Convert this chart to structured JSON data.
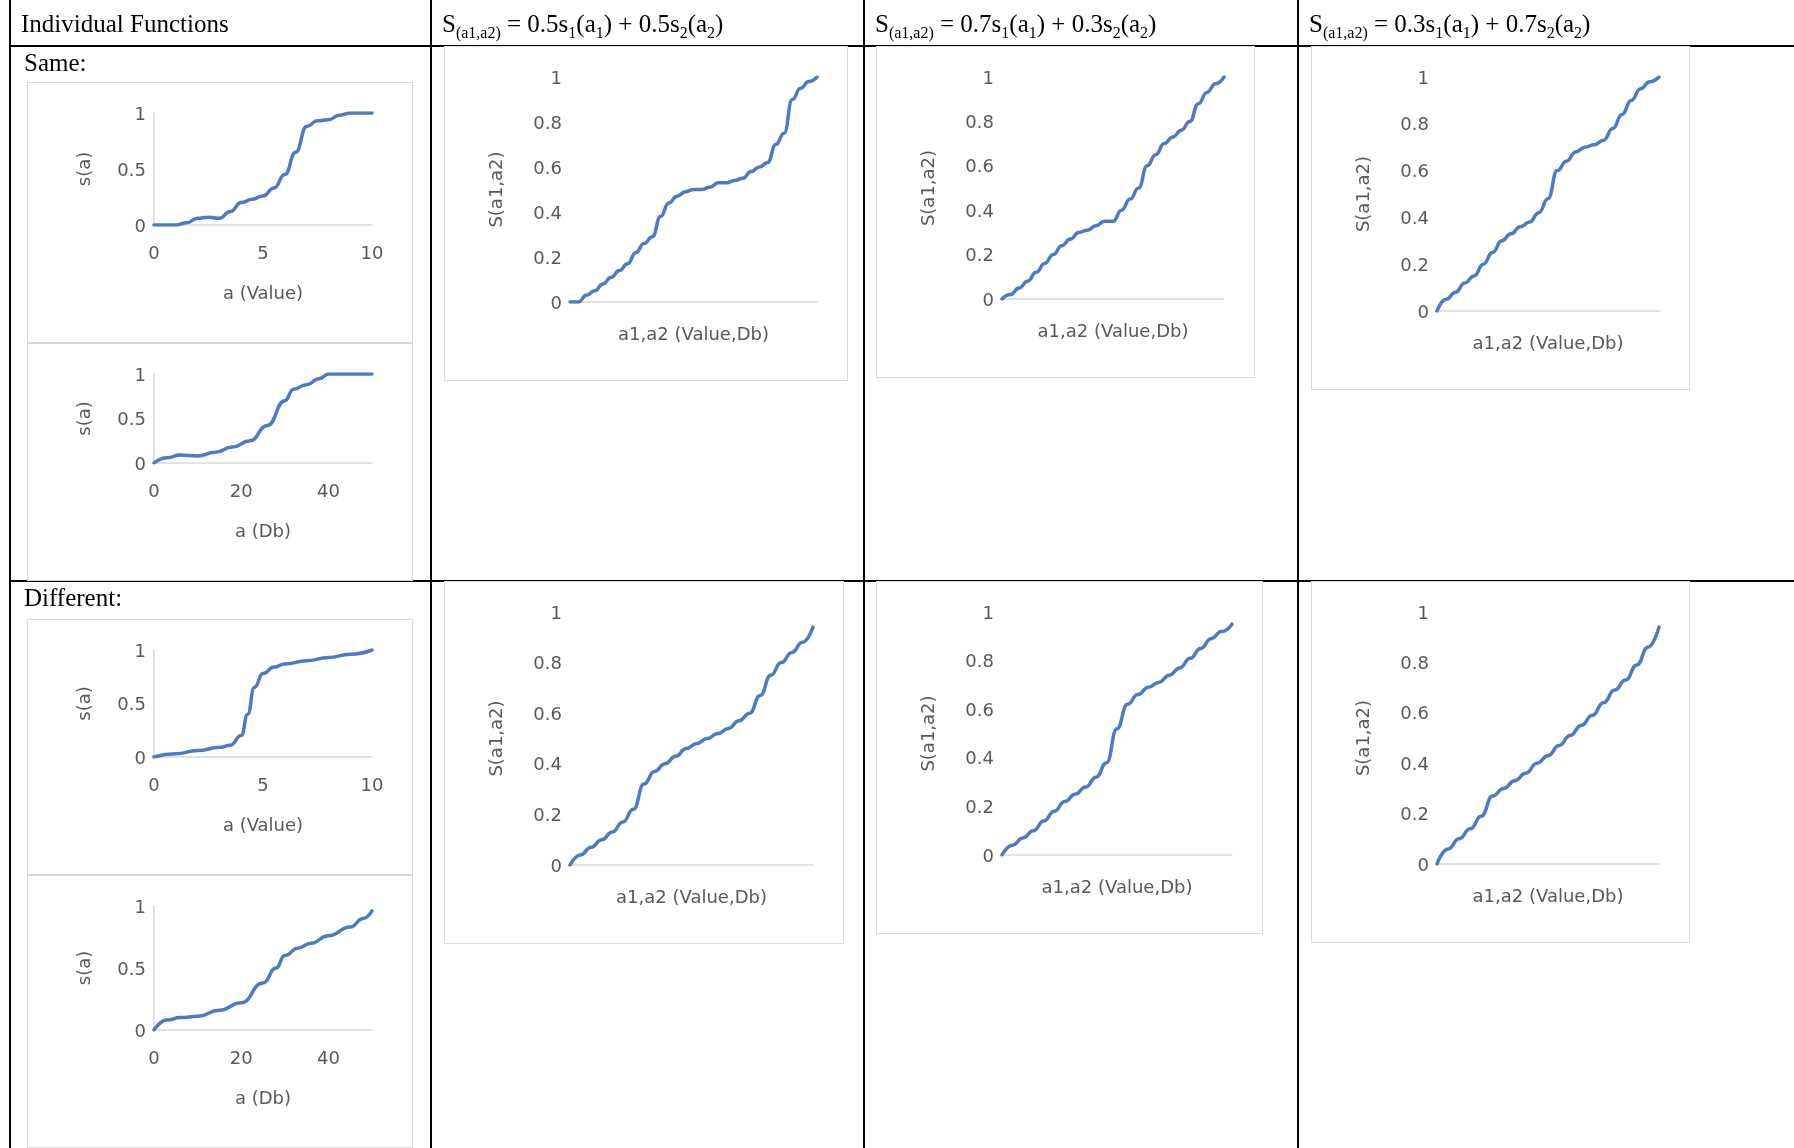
{
  "chart_data": [
    {
      "type": "line",
      "title": "Individual Functions",
      "annotations": [
        "Same:"
      ],
      "xlabel": "a (Value)",
      "ylabel": "s(a)",
      "x": [
        0,
        1,
        1.5,
        2,
        2.5,
        3,
        3.5,
        4,
        4.5,
        5,
        5.5,
        6,
        6.5,
        7,
        7.5,
        8,
        8.5,
        9,
        10
      ],
      "series": [
        {
          "color": "#4a7bc4",
          "values": [
            0,
            0,
            0.02,
            0.06,
            0.07,
            0.06,
            0.12,
            0.2,
            0.23,
            0.26,
            0.33,
            0.45,
            0.65,
            0.88,
            0.93,
            0.94,
            0.98,
            1,
            1
          ]
        }
      ],
      "xlim": [
        0,
        10
      ],
      "xticks": [
        0,
        5,
        10
      ],
      "ylim": [
        0,
        1
      ],
      "yticks": [
        0,
        0.5,
        1
      ],
      "grid": false,
      "marker": "none"
    },
    {
      "type": "line",
      "xlabel": "a (Db)",
      "ylabel": "s(a)",
      "x": [
        0,
        3,
        6,
        10,
        14,
        18,
        22,
        26,
        30,
        32,
        35,
        38,
        40,
        50
      ],
      "series": [
        {
          "color": "#4a7bc4",
          "values": [
            0,
            0.06,
            0.09,
            0.08,
            0.12,
            0.18,
            0.25,
            0.42,
            0.7,
            0.83,
            0.88,
            0.95,
            1,
            1
          ]
        }
      ],
      "xlim": [
        0,
        50
      ],
      "xticks": [
        0,
        20,
        40
      ],
      "ylim": [
        0,
        1
      ],
      "yticks": [
        0,
        0.5,
        1
      ],
      "grid": false,
      "marker": "none"
    },
    {
      "type": "line",
      "title": "S$_{(a1,a2)}$ = 0.5s$_{1}$(a$_{1}$) + 0.5s$_{2}$(a$_{2}$)",
      "xlabel": "a1,a2 (Value,Db)",
      "ylabel": "S(a1,a2)",
      "categories": [
        null,
        null,
        null,
        null,
        null,
        null,
        null,
        null,
        null,
        null,
        null,
        null,
        null,
        null,
        null,
        null,
        null,
        null,
        null,
        null,
        null,
        null,
        null,
        null,
        null,
        null,
        null,
        null,
        null,
        null,
        null
      ],
      "series": [
        {
          "color": "#4a7bc4",
          "values": [
            0,
            0,
            0.03,
            0.05,
            0.08,
            0.11,
            0.14,
            0.17,
            0.22,
            0.26,
            0.29,
            0.38,
            0.44,
            0.47,
            0.49,
            0.5,
            0.5,
            0.51,
            0.53,
            0.53,
            0.54,
            0.55,
            0.58,
            0.6,
            0.62,
            0.7,
            0.75,
            0.9,
            0.95,
            0.98,
            1
          ]
        }
      ],
      "ylim": [
        0,
        1
      ],
      "yticks": [
        0,
        0.2,
        0.4,
        0.6,
        0.8,
        1
      ],
      "tick_labels": "y",
      "grid": false,
      "marker": "none"
    },
    {
      "type": "line",
      "title": "S$_{(a1,a2)}$ = 0.7s$_{1}$(a$_{1}$) + 0.3s$_{2}$(a$_{2}$)",
      "xlabel": "a1,a2 (Value,Db)",
      "ylabel": "S(a1,a2)",
      "categories": [
        null,
        null,
        null,
        null,
        null,
        null,
        null,
        null,
        null,
        null,
        null,
        null,
        null,
        null,
        null,
        null,
        null,
        null,
        null,
        null,
        null,
        null,
        null,
        null,
        null,
        null,
        null
      ],
      "series": [
        {
          "color": "#4a7bc4",
          "values": [
            0,
            0.02,
            0.05,
            0.08,
            0.12,
            0.16,
            0.2,
            0.24,
            0.27,
            0.3,
            0.31,
            0.33,
            0.35,
            0.35,
            0.4,
            0.45,
            0.5,
            0.6,
            0.65,
            0.7,
            0.73,
            0.76,
            0.8,
            0.88,
            0.93,
            0.97,
            1
          ]
        }
      ],
      "ylim": [
        0,
        1
      ],
      "yticks": [
        0,
        0.2,
        0.4,
        0.6,
        0.8,
        1
      ],
      "tick_labels": "y",
      "grid": false,
      "marker": "none"
    },
    {
      "type": "line",
      "title": "S$_{(a1,a2)}$ = 0.3s$_{1}$(a$_{1}$) + 0.7s$_{2}$(a$_{2}$)",
      "xlabel": "a1,a2 (Value,Db)",
      "ylabel": "S(a1,a2)",
      "categories": [
        null,
        null,
        null,
        null,
        null,
        null,
        null,
        null,
        null,
        null,
        null,
        null,
        null,
        null,
        null,
        null,
        null,
        null,
        null,
        null,
        null,
        null,
        null,
        null,
        null
      ],
      "series": [
        {
          "color": "#4a7bc4",
          "values": [
            0,
            0.05,
            0.08,
            0.12,
            0.15,
            0.2,
            0.25,
            0.3,
            0.33,
            0.36,
            0.38,
            0.42,
            0.48,
            0.6,
            0.64,
            0.68,
            0.7,
            0.71,
            0.73,
            0.78,
            0.84,
            0.9,
            0.95,
            0.98,
            1
          ]
        }
      ],
      "ylim": [
        0,
        1
      ],
      "yticks": [
        0,
        0.2,
        0.4,
        0.6,
        0.8,
        1
      ],
      "tick_labels": "y",
      "grid": false,
      "marker": "none"
    },
    {
      "type": "line",
      "annotations": [
        "Different:"
      ],
      "xlabel": "a (Value)",
      "ylabel": "s(a)",
      "x": [
        0,
        1,
        2,
        3,
        3.5,
        4,
        4.3,
        4.6,
        5,
        5.5,
        6,
        7,
        8,
        9,
        10
      ],
      "series": [
        {
          "color": "#4a7bc4",
          "values": [
            0,
            0.03,
            0.06,
            0.09,
            0.11,
            0.2,
            0.4,
            0.65,
            0.78,
            0.84,
            0.87,
            0.9,
            0.93,
            0.96,
            1
          ]
        }
      ],
      "xlim": [
        0,
        10
      ],
      "xticks": [
        0,
        5,
        10
      ],
      "ylim": [
        0,
        1
      ],
      "yticks": [
        0,
        0.5,
        1
      ],
      "grid": false,
      "marker": "none"
    },
    {
      "type": "line",
      "xlabel": "a (Db)",
      "ylabel": "s(a)",
      "x": [
        0,
        3,
        6,
        10,
        15,
        20,
        25,
        28,
        30,
        33,
        36,
        40,
        45,
        48,
        50
      ],
      "series": [
        {
          "color": "#4a7bc4",
          "values": [
            0,
            0.08,
            0.1,
            0.11,
            0.16,
            0.22,
            0.38,
            0.5,
            0.6,
            0.66,
            0.7,
            0.76,
            0.83,
            0.9,
            0.96
          ]
        }
      ],
      "xlim": [
        0,
        50
      ],
      "xticks": [
        0,
        20,
        40
      ],
      "ylim": [
        0,
        1
      ],
      "yticks": [
        0,
        0.5,
        1
      ],
      "grid": false,
      "marker": "none"
    },
    {
      "type": "line",
      "xlabel": "a1,a2 (Value,Db)",
      "ylabel": "S(a1,a2)",
      "categories": [
        null,
        null,
        null,
        null,
        null,
        null,
        null,
        null,
        null,
        null,
        null,
        null,
        null,
        null,
        null,
        null,
        null,
        null,
        null,
        null,
        null,
        null,
        null,
        null
      ],
      "series": [
        {
          "color": "#4a7bc4",
          "values": [
            0,
            0.04,
            0.07,
            0.1,
            0.13,
            0.17,
            0.22,
            0.32,
            0.37,
            0.4,
            0.43,
            0.46,
            0.48,
            0.5,
            0.52,
            0.54,
            0.57,
            0.6,
            0.67,
            0.75,
            0.8,
            0.84,
            0.88,
            0.94
          ]
        }
      ],
      "ylim": [
        0,
        1
      ],
      "yticks": [
        0,
        0.2,
        0.4,
        0.6,
        0.8,
        1
      ],
      "tick_labels": "y",
      "grid": false,
      "marker": "none"
    },
    {
      "type": "line",
      "xlabel": "a1,a2 (Value,Db)",
      "ylabel": "S(a1,a2)",
      "categories": [
        null,
        null,
        null,
        null,
        null,
        null,
        null,
        null,
        null,
        null,
        null,
        null,
        null,
        null,
        null,
        null,
        null,
        null,
        null,
        null,
        null,
        null,
        null
      ],
      "series": [
        {
          "color": "#4a7bc4",
          "values": [
            0,
            0.04,
            0.07,
            0.1,
            0.14,
            0.18,
            0.22,
            0.25,
            0.28,
            0.32,
            0.38,
            0.52,
            0.62,
            0.66,
            0.69,
            0.71,
            0.74,
            0.77,
            0.81,
            0.85,
            0.89,
            0.92,
            0.95
          ]
        }
      ],
      "ylim": [
        0,
        1
      ],
      "yticks": [
        0,
        0.2,
        0.4,
        0.6,
        0.8,
        1
      ],
      "tick_labels": "y",
      "grid": false,
      "marker": "none"
    },
    {
      "type": "line",
      "xlabel": "a1,a2 (Value,Db)",
      "ylabel": "S(a1,a2)",
      "categories": [
        null,
        null,
        null,
        null,
        null,
        null,
        null,
        null,
        null,
        null,
        null,
        null,
        null,
        null,
        null,
        null,
        null,
        null,
        null,
        null,
        null
      ],
      "series": [
        {
          "color": "#4a7bc4",
          "values": [
            0,
            0.06,
            0.1,
            0.14,
            0.19,
            0.27,
            0.3,
            0.33,
            0.36,
            0.4,
            0.43,
            0.47,
            0.51,
            0.55,
            0.59,
            0.64,
            0.69,
            0.73,
            0.79,
            0.86,
            0.94
          ]
        }
      ],
      "ylim": [
        0,
        1
      ],
      "yticks": [
        0,
        0.2,
        0.4,
        0.6,
        0.8,
        1
      ],
      "tick_labels": "y",
      "grid": false,
      "marker": "none"
    }
  ]
}
